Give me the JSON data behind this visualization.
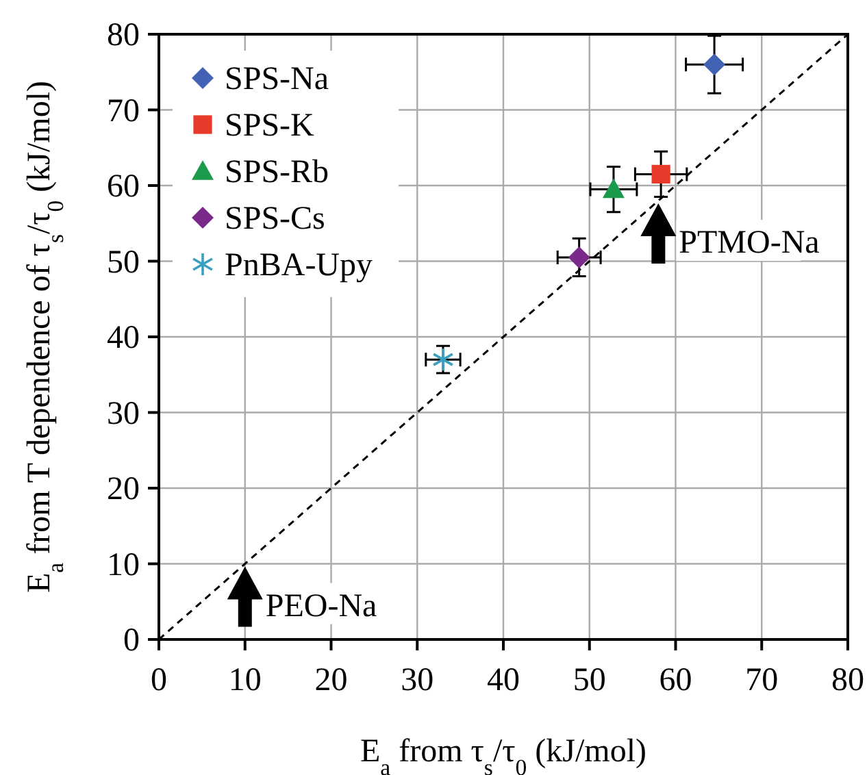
{
  "chart_data": {
    "type": "scatter",
    "xlabel": "E$_{a}$ from τ$_{s}$/τ$_{0}$ (kJ/mol)",
    "ylabel": "E$_{a}$ from T dependence of τ$_{s}$/τ$_{0}$ (kJ/mol)",
    "xlim": [
      0,
      80
    ],
    "xticks": [
      0,
      10,
      20,
      30,
      40,
      50,
      60,
      70,
      80
    ],
    "ylim": [
      0,
      80
    ],
    "yticks": [
      0,
      10,
      20,
      30,
      40,
      50,
      60,
      70,
      80
    ],
    "grid": true,
    "legend": "top left",
    "series": [
      {
        "name": "SPS-Na",
        "color": "#4262b4",
        "marker": "diamond",
        "x": [
          64.5
        ],
        "values": [
          76
        ],
        "errors": [
          3.8
        ],
        "xerrors": [
          3.3
        ]
      },
      {
        "name": "SPS-K",
        "color": "#e83a2a",
        "marker": "square",
        "x": [
          58.3
        ],
        "values": [
          61.5
        ],
        "errors": [
          3
        ],
        "xerrors": [
          3
        ]
      },
      {
        "name": "SPS-Rb",
        "color": "#1a9a4a",
        "marker": "triangle",
        "x": [
          52.8
        ],
        "values": [
          59.5
        ],
        "errors": [
          3
        ],
        "xerrors": [
          2.7
        ]
      },
      {
        "name": "SPS-Cs",
        "color": "#7a2a8a",
        "marker": "diamond",
        "x": [
          48.8
        ],
        "values": [
          50.5
        ],
        "errors": [
          2.5
        ],
        "xerrors": [
          2.5
        ]
      },
      {
        "name": "PnBA-Upy",
        "color": "#3aa0c0",
        "marker": "cross",
        "x": [
          33
        ],
        "values": [
          37
        ],
        "errors": [
          1.8
        ],
        "xerrors": [
          2
        ]
      },
      {
        "type": "line",
        "color": "#000000",
        "line_style": "dashed",
        "marker": "none",
        "x": [
          0,
          80
        ],
        "values": [
          0,
          80
        ]
      }
    ],
    "annotations": [
      {
        "text": "PTMO-Na",
        "x": 58,
        "y": 58
      },
      {
        "text": "PEO-Na",
        "x": 10,
        "y": 10
      }
    ]
  }
}
